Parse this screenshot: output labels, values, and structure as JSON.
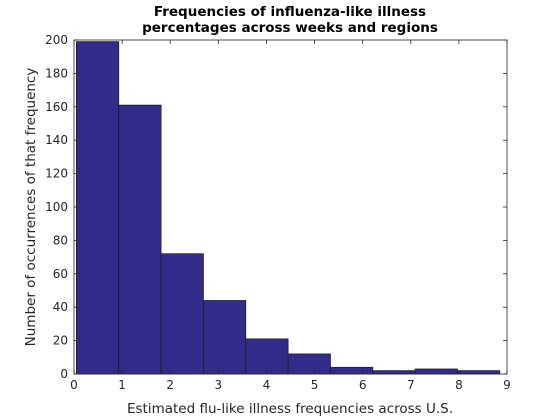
{
  "chart_data": {
    "type": "bar",
    "title": [
      "Frequencies of influenza-like illness",
      "percentages across weeks and regions"
    ],
    "xlabel": "Estimated flu-like illness frequencies across U.S.",
    "ylabel": "Number of occurrences of that frequency",
    "xlim": [
      0,
      9
    ],
    "ylim": [
      0,
      200
    ],
    "xticks": [
      0,
      1,
      2,
      3,
      4,
      5,
      6,
      7,
      8,
      9
    ],
    "yticks": [
      0,
      20,
      40,
      60,
      80,
      100,
      120,
      140,
      160,
      180,
      200
    ],
    "bin_edges": [
      0.05,
      0.93,
      1.81,
      2.69,
      3.57,
      4.45,
      5.33,
      6.21,
      7.09,
      7.97,
      8.85
    ],
    "values": [
      199,
      161,
      72,
      44,
      21,
      12,
      4,
      2,
      3,
      2
    ],
    "bar_color": "#332b8a",
    "edge_color": "#1e1e1e",
    "grid": false
  }
}
